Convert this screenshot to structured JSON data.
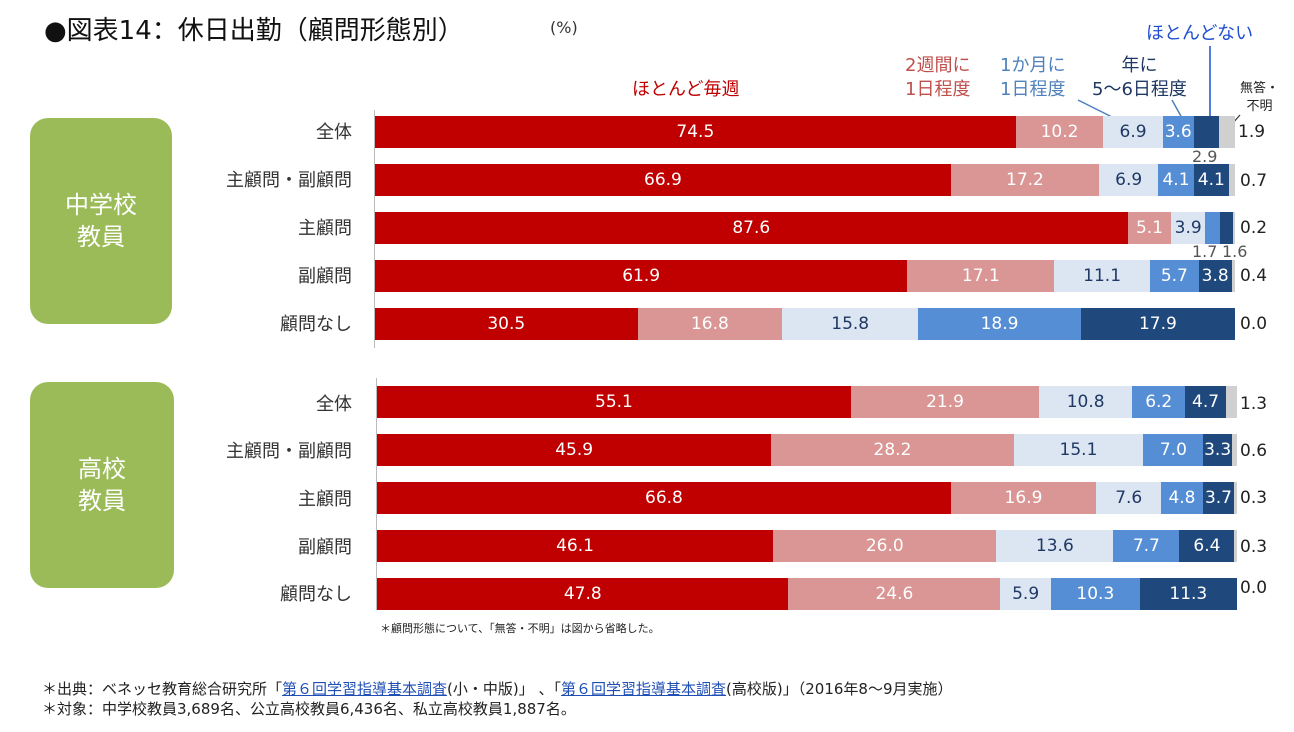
{
  "title": "●図表14：休日出勤（顧問形態別）",
  "unit": "(%)",
  "legend": {
    "almost_every_week": "ほとんど毎週",
    "biweekly": "2週間に\n1日程度",
    "monthly": "1か月に\n1日程度",
    "yearly": "年に\n5〜6日程度",
    "almost_none": "ほとんどない",
    "no_answer": "無答・\n不明"
  },
  "colors": {
    "almost_every_week": "#c00000",
    "biweekly": "#d99694",
    "monthly": "#dce6f2",
    "yearly": "#558ed5",
    "almost_none": "#1f497d",
    "no_answer": "#d0d0d0",
    "group_label": "#9bbb59"
  },
  "chart_data": {
    "type": "bar",
    "stacked": true,
    "orientation": "horizontal",
    "series_names": [
      "ほとんど毎週",
      "2週間に1日程度",
      "1か月に1日程度",
      "年に5〜6日程度",
      "ほとんどない",
      "無答・不明"
    ],
    "groups": [
      {
        "name": "中学校\n教員",
        "rows": [
          {
            "label": "全体",
            "values": [
              74.5,
              10.2,
              6.9,
              3.6,
              2.9,
              1.9
            ],
            "external": {
              "4": "2.9"
            }
          },
          {
            "label": "主顧問・副顧問",
            "values": [
              66.9,
              17.2,
              6.9,
              4.1,
              4.1,
              0.7
            ]
          },
          {
            "label": "主顧問",
            "values": [
              87.6,
              5.1,
              3.9,
              1.7,
              1.6,
              0.2
            ],
            "external": {
              "3": "1.7",
              "4": "1.6"
            }
          },
          {
            "label": "副顧問",
            "values": [
              61.9,
              17.1,
              11.1,
              5.7,
              3.8,
              0.4
            ]
          },
          {
            "label": "顧問なし",
            "values": [
              30.5,
              16.8,
              15.8,
              18.9,
              17.9,
              0.0
            ]
          }
        ]
      },
      {
        "name": "高校\n教員",
        "rows": [
          {
            "label": "全体",
            "values": [
              55.1,
              21.9,
              10.8,
              6.2,
              4.7,
              1.3
            ]
          },
          {
            "label": "主顧問・副顧問",
            "values": [
              45.9,
              28.2,
              15.1,
              7.0,
              3.3,
              0.6
            ]
          },
          {
            "label": "主顧問",
            "values": [
              66.8,
              16.9,
              7.6,
              4.8,
              3.7,
              0.3
            ]
          },
          {
            "label": "副顧問",
            "values": [
              46.1,
              26.0,
              13.6,
              7.7,
              6.4,
              0.3
            ]
          },
          {
            "label": "顧問なし",
            "values": [
              47.8,
              24.6,
              5.9,
              10.3,
              11.3,
              0.0
            ]
          }
        ]
      }
    ]
  },
  "na_labels": {
    "g0": [
      "1.9",
      "0.7",
      "0.2",
      "0.4",
      "0.0"
    ],
    "g1": [
      "1.3",
      "0.6",
      "0.3",
      "0.3",
      "0.0"
    ]
  },
  "note": "＊顧問形態について、「無答・不明」は図から省略した。",
  "footer": {
    "source_prefix": "＊出典：ベネッセ教育総合研究所「",
    "link1": "第６回学習指導基本調査",
    "source_mid1": "(小・中版)」 、「",
    "link2": "第６回学習指導基本調査",
    "source_mid2": "(高校版)」（2016年8〜9月実施）",
    "target": "＊対象：中学校教員3,689名、公立高校教員6,436名、私立高校教員1,887名。"
  }
}
